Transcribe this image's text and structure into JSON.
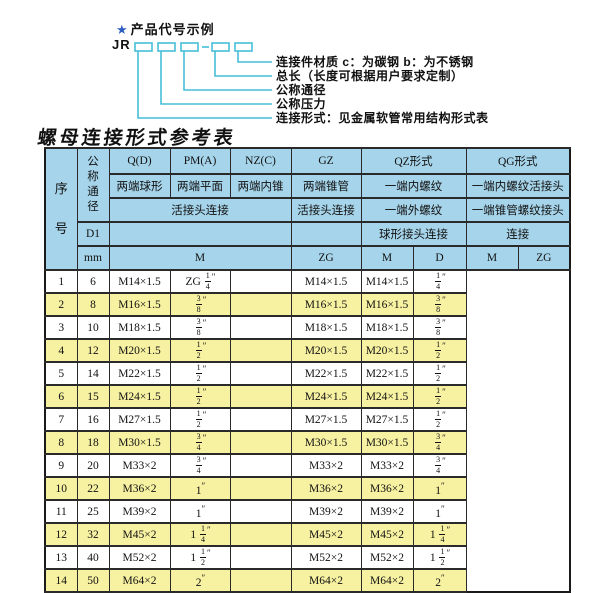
{
  "colors": {
    "header_bg": "#a6d4ea",
    "stripe_bg": "#f7f1a2",
    "line_color": "#45bfd6",
    "star_color": "#2e5fc0"
  },
  "diagram": {
    "star": "★",
    "heading": "产品代号示例",
    "prefix": "JR",
    "labels": [
      "连接件材质  c：为碳钢  b：为不锈钢",
      "总长（长度可根据用户要求定制）",
      "公称通径",
      "公称压力",
      "连接形式：见金属软管常用结构形式表"
    ]
  },
  "table": {
    "title": "螺母连接形式参考表",
    "header": {
      "seq": "序号",
      "dn": "公称通径",
      "d1": "D1",
      "mm": "mm",
      "q": "Q(D)",
      "q_desc": "两端球形",
      "pm": "PM(A)",
      "pm_desc": "两端平面",
      "nz": "NZ(C)",
      "nz_desc": "两端内锥",
      "gz": "GZ",
      "gz_desc": "两端锥管",
      "left_row3": "活接头连接",
      "gz_row3": "活接头连接",
      "qz": "QZ形式",
      "qz_desc": "一端内螺纹",
      "qz_row3": "一端外螺纹",
      "qz_row4": "球形接头连接",
      "qg": "QG形式",
      "qg_desc": "一端内螺纹活接头",
      "qg_row3": "一端锥管螺纹接头",
      "qg_row4": "连接",
      "left_unit": "M",
      "gz_unit": "ZG",
      "qz_unit_m": "M",
      "qz_unit_d": "D",
      "qg_unit_m": "M",
      "qg_unit_zg": "ZG"
    },
    "rows": [
      {
        "no": "1",
        "dn": "6",
        "m": "M14×1.5",
        "gz": "ZG 1/4″",
        "qz_m": "",
        "qz_d": "M14×1.5",
        "qg_m": "M14×1.5",
        "qg_zg": "1/4″"
      },
      {
        "no": "2",
        "dn": "8",
        "m": "M16×1.5",
        "gz": "3/8″",
        "qz_m": "",
        "qz_d": "M16×1.5",
        "qg_m": "M16×1.5",
        "qg_zg": "3/8″"
      },
      {
        "no": "3",
        "dn": "10",
        "m": "M18×1.5",
        "gz": "3/8″",
        "qz_m": "",
        "qz_d": "M18×1.5",
        "qg_m": "M18×1.5",
        "qg_zg": "3/8″"
      },
      {
        "no": "4",
        "dn": "12",
        "m": "M20×1.5",
        "gz": "1/2″",
        "qz_m": "",
        "qz_d": "M20×1.5",
        "qg_m": "M20×1.5",
        "qg_zg": "1/2″"
      },
      {
        "no": "5",
        "dn": "14",
        "m": "M22×1.5",
        "gz": "1/2″",
        "qz_m": "",
        "qz_d": "M22×1.5",
        "qg_m": "M22×1.5",
        "qg_zg": "1/2″"
      },
      {
        "no": "6",
        "dn": "15",
        "m": "M24×1.5",
        "gz": "1/2″",
        "qz_m": "",
        "qz_d": "M24×1.5",
        "qg_m": "M24×1.5",
        "qg_zg": "1/2″"
      },
      {
        "no": "7",
        "dn": "16",
        "m": "M27×1.5",
        "gz": "1/2″",
        "qz_m": "",
        "qz_d": "M27×1.5",
        "qg_m": "M27×1.5",
        "qg_zg": "1/2″"
      },
      {
        "no": "8",
        "dn": "18",
        "m": "M30×1.5",
        "gz": "3/4″",
        "qz_m": "",
        "qz_d": "M30×1.5",
        "qg_m": "M30×1.5",
        "qg_zg": "3/4″"
      },
      {
        "no": "9",
        "dn": "20",
        "m": "M33×2",
        "gz": "3/4″",
        "qz_m": "",
        "qz_d": "M33×2",
        "qg_m": "M33×2",
        "qg_zg": "3/4″"
      },
      {
        "no": "10",
        "dn": "22",
        "m": "M36×2",
        "gz": "1″",
        "qz_m": "",
        "qz_d": "M36×2",
        "qg_m": "M36×2",
        "qg_zg": "1″"
      },
      {
        "no": "11",
        "dn": "25",
        "m": "M39×2",
        "gz": "1″",
        "qz_m": "",
        "qz_d": "M39×2",
        "qg_m": "M39×2",
        "qg_zg": "1″"
      },
      {
        "no": "12",
        "dn": "32",
        "m": "M45×2",
        "gz": "1 1/4″",
        "qz_m": "",
        "qz_d": "M45×2",
        "qg_m": "M45×2",
        "qg_zg": "1 1/4″"
      },
      {
        "no": "13",
        "dn": "40",
        "m": "M52×2",
        "gz": "1 1/2″",
        "qz_m": "",
        "qz_d": "M52×2",
        "qg_m": "M52×2",
        "qg_zg": "1 1/2″"
      },
      {
        "no": "14",
        "dn": "50",
        "m": "M64×2",
        "gz": "2″",
        "qz_m": "",
        "qz_d": "M64×2",
        "qg_m": "M64×2",
        "qg_zg": "2″"
      }
    ]
  }
}
